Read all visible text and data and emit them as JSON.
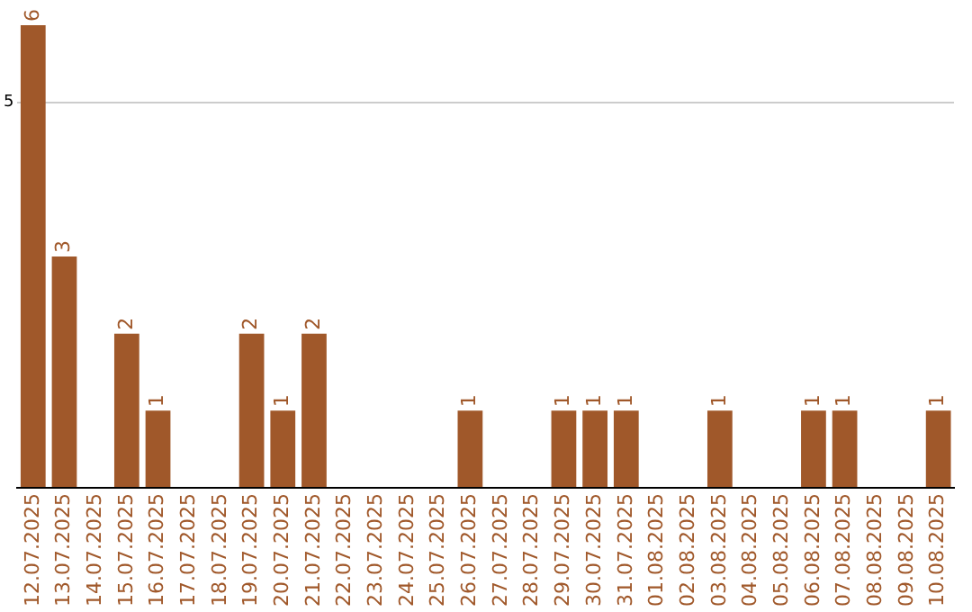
{
  "chart_data": {
    "type": "bar",
    "categories": [
      "12.07.2025",
      "13.07.2025",
      "14.07.2025",
      "15.07.2025",
      "16.07.2025",
      "17.07.2025",
      "18.07.2025",
      "19.07.2025",
      "20.07.2025",
      "21.07.2025",
      "22.07.2025",
      "23.07.2025",
      "24.07.2025",
      "25.07.2025",
      "26.07.2025",
      "27.07.2025",
      "28.07.2025",
      "29.07.2025",
      "30.07.2025",
      "31.07.2025",
      "01.08.2025",
      "02.08.2025",
      "03.08.2025",
      "04.08.2025",
      "05.08.2025",
      "06.08.2025",
      "07.08.2025",
      "08.08.2025",
      "09.08.2025",
      "10.08.2025"
    ],
    "values": [
      6,
      3,
      0,
      2,
      1,
      0,
      0,
      2,
      1,
      2,
      0,
      0,
      0,
      0,
      1,
      0,
      0,
      1,
      1,
      1,
      0,
      0,
      1,
      0,
      0,
      1,
      1,
      0,
      0,
      1
    ],
    "value_labels": [
      "6",
      "3",
      null,
      "2",
      "1",
      null,
      null,
      "2",
      "1",
      "2",
      null,
      null,
      null,
      null,
      "1",
      null,
      null,
      "1",
      "1",
      "1",
      null,
      null,
      "1",
      null,
      null,
      "1",
      "1",
      null,
      null,
      "1"
    ],
    "color": "#a0582a",
    "ylim": [
      0,
      6
    ],
    "yticks": [
      {
        "value": 0,
        "label": null
      },
      5
    ],
    "grid": "y",
    "legend": false
  }
}
